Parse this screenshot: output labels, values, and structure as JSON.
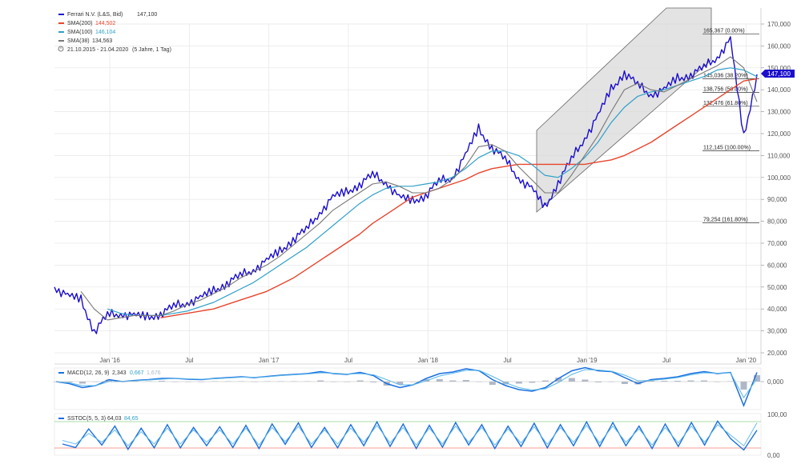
{
  "main": {
    "legend": [
      {
        "label": "Ferrari N.V. (L&S, Bid)",
        "value": "147,100",
        "color": "#1a0dcc"
      },
      {
        "label": "SMA(200)",
        "value": "144,502",
        "color": "#e8452c"
      },
      {
        "label": "SMA(100)",
        "value": "146,104",
        "color": "#2ea0c9"
      },
      {
        "label": "SMA(38)",
        "value": "134,563",
        "color": "#777777"
      }
    ],
    "period": "21.10.2015 - 21.04.2020",
    "period_detail": "(5 Jahre, 1 Tag)",
    "price_tag": "147,100",
    "y_ticks": [
      "170,000",
      "160,000",
      "150,000",
      "140,000",
      "130,000",
      "120,000",
      "110,000",
      "100,000",
      "90,000",
      "80,000",
      "70,000",
      "60,000",
      "50,000",
      "40,000",
      "30,000",
      "20,000"
    ],
    "x_ticks": [
      "Jan '16",
      "Jul",
      "Jan '17",
      "Jul",
      "Jan '18",
      "Jul",
      "Jan '19",
      "Jul",
      "Jan '20"
    ],
    "fib_levels": [
      {
        "label": "165,367 (0.00%)",
        "value": 165.367
      },
      {
        "label": "145,036 (38.20%)",
        "value": 145.036
      },
      {
        "label": "138,756 (50.00%)",
        "value": 138.756
      },
      {
        "label": "132,476 (61.80%)",
        "value": 132.476
      },
      {
        "label": "112,145 (100.00%)",
        "value": 112.145
      },
      {
        "label": "79,254 (161.80%)",
        "value": 79.254
      }
    ]
  },
  "macd": {
    "label": "MACD(12, 26, 9)",
    "v1": "2,343",
    "v2": "0,667",
    "v3": "1,676",
    "tick": "0,000",
    "colors": {
      "macd": "#1a6fe0",
      "signal": "#5bb8e8",
      "hist": "#b0b8c8"
    }
  },
  "stoch": {
    "label": "SSTOC(5, 5, 3)",
    "v1": "64,03",
    "v2": "84,65",
    "ticks": [
      "100,00",
      "0,00"
    ],
    "colors": {
      "k": "#1a6fe0",
      "d": "#5bb8e8"
    }
  },
  "chart_data": [
    {
      "type": "line",
      "title": "Ferrari N.V. (L&S, Bid)",
      "x": [
        "2015-11",
        "2015-12",
        "2016-01",
        "2016-02",
        "2016-03",
        "2016-04",
        "2016-05",
        "2016-06",
        "2016-07",
        "2016-08",
        "2016-09",
        "2016-10",
        "2016-11",
        "2016-12",
        "2017-01",
        "2017-02",
        "2017-03",
        "2017-04",
        "2017-05",
        "2017-06",
        "2017-07",
        "2017-08",
        "2017-09",
        "2017-10",
        "2017-11",
        "2017-12",
        "2018-01",
        "2018-02",
        "2018-03",
        "2018-04",
        "2018-05",
        "2018-06",
        "2018-07",
        "2018-08",
        "2018-09",
        "2018-10",
        "2018-11",
        "2018-12",
        "2019-01",
        "2019-02",
        "2019-03",
        "2019-04",
        "2019-05",
        "2019-06",
        "2019-07",
        "2019-08",
        "2019-09",
        "2019-10",
        "2019-11",
        "2019-12",
        "2020-01",
        "2020-02",
        "2020-03",
        "2020-04"
      ],
      "series": [
        {
          "name": "Ferrari N.V. (L&S, Bid)",
          "values": [
            50,
            46,
            44,
            30,
            37,
            38,
            37,
            36,
            38,
            41,
            43,
            45,
            48,
            52,
            55,
            58,
            62,
            66,
            72,
            76,
            84,
            91,
            93,
            97,
            101,
            98,
            91,
            89,
            92,
            98,
            100,
            110,
            122,
            114,
            108,
            100,
            95,
            86,
            98,
            108,
            118,
            128,
            140,
            148,
            142,
            138,
            140,
            145,
            147,
            150,
            155,
            163,
            118,
            147
          ]
        },
        {
          "name": "SMA(200)",
          "values": [
            null,
            null,
            null,
            null,
            null,
            null,
            null,
            null,
            36,
            37,
            38,
            39,
            40,
            42,
            44,
            46,
            48,
            51,
            54,
            58,
            62,
            66,
            70,
            74,
            79,
            83,
            87,
            91,
            93,
            95,
            97,
            99,
            102,
            104,
            105,
            106,
            106,
            106,
            106,
            106,
            106,
            107,
            108,
            110,
            113,
            116,
            120,
            124,
            128,
            132,
            136,
            140,
            144,
            145
          ]
        },
        {
          "name": "SMA(100)",
          "values": [
            null,
            null,
            null,
            null,
            40,
            38,
            37,
            37,
            37,
            38,
            39,
            41,
            43,
            46,
            49,
            52,
            56,
            60,
            64,
            68,
            73,
            78,
            83,
            88,
            92,
            95,
            96,
            96,
            97,
            98,
            100,
            104,
            109,
            112,
            112,
            110,
            106,
            101,
            100,
            104,
            109,
            116,
            125,
            132,
            137,
            139,
            140,
            142,
            144,
            146,
            149,
            150,
            149,
            146
          ]
        },
        {
          "name": "SMA(38)",
          "values": [
            null,
            null,
            48,
            40,
            35,
            36,
            37,
            37,
            37,
            39,
            42,
            44,
            47,
            50,
            54,
            57,
            60,
            64,
            69,
            74,
            79,
            85,
            89,
            93,
            97,
            98,
            96,
            93,
            93,
            95,
            99,
            105,
            114,
            115,
            112,
            105,
            99,
            93,
            93,
            101,
            110,
            119,
            130,
            140,
            143,
            140,
            139,
            142,
            145,
            148,
            151,
            155,
            150,
            134.5
          ]
        }
      ],
      "ylim": [
        15,
        175
      ]
    },
    {
      "type": "line",
      "title": "MACD(12, 26, 9)",
      "series": [
        {
          "name": "MACD(12, 26, 9)",
          "values": [
            0,
            -0.5,
            -1.5,
            -1,
            0.5,
            0,
            0.3,
            0.5,
            0.8,
            0.8,
            0.6,
            0.5,
            0.8,
            1,
            1.2,
            1,
            1.3,
            1.6,
            1.8,
            2,
            2.5,
            2,
            1.8,
            2.3,
            1.5,
            -0.5,
            -1.5,
            -0.8,
            0.8,
            2,
            2.4,
            3.2,
            2.7,
            0.5,
            -1,
            -2,
            -2.4,
            -1.5,
            0.8,
            2.7,
            3.5,
            2.7,
            2.5,
            1,
            -0.5,
            0.5,
            0.8,
            1.2,
            2,
            2.5,
            2,
            2.3,
            -6,
            2.3
          ]
        },
        {
          "name": "Signal",
          "values": [
            0,
            -0.3,
            -1,
            -1,
            0,
            0,
            0.2,
            0.4,
            0.6,
            0.8,
            0.7,
            0.6,
            0.7,
            0.9,
            1.1,
            1.1,
            1.2,
            1.5,
            1.7,
            1.9,
            2.2,
            2.1,
            1.9,
            2,
            1.7,
            0.5,
            -0.8,
            -0.8,
            0.2,
            1.4,
            2.1,
            2.8,
            2.8,
            1.3,
            -0.3,
            -1.5,
            -2.1,
            -1.8,
            -0.2,
            1.8,
            3,
            2.9,
            2.6,
            1.6,
            0.2,
            0.3,
            0.6,
            1,
            1.7,
            2.2,
            2.1,
            2.2,
            -4,
            0.7
          ]
        }
      ],
      "ylim": [
        -8,
        5
      ]
    },
    {
      "type": "line",
      "title": "SSTOC(5, 5, 3)",
      "series": [
        {
          "name": "SSTOC(5, 5, 3)",
          "values": [
            25,
            15,
            68,
            22,
            76,
            10,
            70,
            14,
            80,
            14,
            72,
            20,
            74,
            15,
            78,
            12,
            82,
            24,
            85,
            15,
            72,
            14,
            80,
            20,
            88,
            18,
            82,
            12,
            78,
            16,
            86,
            22,
            80,
            12,
            76,
            18,
            84,
            14,
            80,
            20,
            88,
            18,
            86,
            20,
            76,
            12,
            82,
            18,
            86,
            22,
            90,
            40,
            8,
            64
          ]
        },
        {
          "name": "%D",
          "values": [
            35,
            25,
            55,
            30,
            65,
            20,
            60,
            25,
            70,
            25,
            65,
            30,
            65,
            25,
            70,
            22,
            72,
            32,
            75,
            25,
            65,
            25,
            70,
            30,
            78,
            28,
            72,
            22,
            70,
            25,
            76,
            30,
            72,
            22,
            68,
            28,
            74,
            24,
            72,
            30,
            78,
            28,
            76,
            30,
            68,
            22,
            72,
            28,
            76,
            30,
            80,
            50,
            20,
            85
          ]
        }
      ],
      "ylim": [
        0,
        100
      ]
    }
  ]
}
